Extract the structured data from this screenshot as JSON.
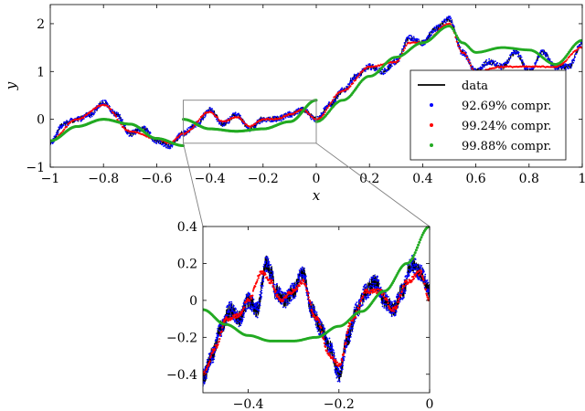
{
  "chart_data": [
    {
      "type": "line",
      "xlabel": "x",
      "ylabel": "y",
      "xlim": [
        -1,
        1
      ],
      "ylim": [
        -1,
        2.4
      ],
      "xticks": [
        -1,
        -0.8,
        -0.6,
        -0.4,
        -0.2,
        0,
        0.2,
        0.4,
        0.6,
        0.8,
        1
      ],
      "xtick_labels": [
        "−1",
        "−0.8",
        "−0.6",
        "−0.4",
        "−0.2",
        "0",
        "0.2",
        "0.4",
        "0.6",
        "0.8",
        "1"
      ],
      "yticks": [
        -1,
        0,
        1,
        2
      ],
      "ytick_labels": [
        "−1",
        "0",
        "1",
        "2"
      ],
      "legend_position": "lower-right",
      "zoom_box": {
        "x": [
          -0.5,
          0
        ],
        "y": [
          -0.5,
          0.4
        ]
      },
      "series": [
        {
          "name": "data",
          "style": "line",
          "color": "#000000",
          "anchors": {
            "x": [
              -1,
              -0.95,
              -0.9,
              -0.85,
              -0.8,
              -0.75,
              -0.7,
              -0.65,
              -0.6,
              -0.55,
              -0.5,
              -0.45,
              -0.4,
              -0.35,
              -0.3,
              -0.25,
              -0.2,
              -0.15,
              -0.1,
              -0.05,
              0,
              0.05,
              0.1,
              0.15,
              0.2,
              0.25,
              0.3,
              0.35,
              0.4,
              0.45,
              0.5,
              0.55,
              0.6,
              0.65,
              0.7,
              0.75,
              0.8,
              0.85,
              0.9,
              0.95,
              1
            ],
            "y": [
              -0.5,
              -0.1,
              0.0,
              0.1,
              0.35,
              0.1,
              -0.3,
              -0.2,
              -0.45,
              -0.55,
              -0.3,
              -0.1,
              0.2,
              -0.1,
              0.1,
              -0.2,
              0.0,
              0.0,
              0.1,
              0.2,
              0.0,
              0.3,
              0.6,
              0.9,
              1.1,
              1.0,
              1.2,
              1.7,
              1.6,
              1.9,
              2.1,
              1.4,
              1.0,
              1.2,
              1.1,
              1.4,
              1.0,
              1.4,
              1.1,
              1.1,
              1.6
            ]
          },
          "noise_amplitude": 0.06
        },
        {
          "name": "92.69% compr.",
          "style": "dots",
          "color": "#0000ff",
          "anchors": {
            "x": [
              -1,
              -0.95,
              -0.9,
              -0.85,
              -0.8,
              -0.75,
              -0.7,
              -0.65,
              -0.6,
              -0.55,
              -0.5,
              -0.45,
              -0.4,
              -0.35,
              -0.3,
              -0.25,
              -0.2,
              -0.15,
              -0.1,
              -0.05,
              0,
              0.05,
              0.1,
              0.15,
              0.2,
              0.25,
              0.3,
              0.35,
              0.4,
              0.45,
              0.5,
              0.55,
              0.6,
              0.65,
              0.7,
              0.75,
              0.8,
              0.85,
              0.9,
              0.95,
              1
            ],
            "y": [
              -0.5,
              -0.1,
              0.0,
              0.1,
              0.35,
              0.1,
              -0.3,
              -0.2,
              -0.45,
              -0.55,
              -0.3,
              -0.1,
              0.2,
              -0.1,
              0.1,
              -0.2,
              0.0,
              0.0,
              0.1,
              0.2,
              0.0,
              0.3,
              0.6,
              0.9,
              1.1,
              1.0,
              1.2,
              1.7,
              1.6,
              1.9,
              2.1,
              1.4,
              1.0,
              1.2,
              1.1,
              1.4,
              1.0,
              1.4,
              1.1,
              1.1,
              1.6
            ]
          }
        },
        {
          "name": "99.24% compr.",
          "style": "dots",
          "color": "#ff0000",
          "anchors": {
            "x": [
              -1,
              -0.9,
              -0.8,
              -0.7,
              -0.6,
              -0.55,
              -0.5,
              -0.4,
              -0.35,
              -0.3,
              -0.25,
              -0.2,
              -0.15,
              -0.1,
              -0.05,
              0,
              0.1,
              0.2,
              0.3,
              0.35,
              0.4,
              0.5,
              0.55,
              0.6,
              0.7,
              0.8,
              0.9,
              1
            ],
            "y": [
              -0.45,
              0.0,
              0.3,
              -0.25,
              -0.4,
              -0.5,
              -0.3,
              0.15,
              -0.05,
              0.05,
              -0.15,
              0.0,
              0.0,
              0.1,
              0.2,
              0.0,
              0.6,
              1.1,
              1.2,
              1.6,
              1.6,
              2.0,
              1.4,
              1.0,
              1.1,
              1.1,
              1.1,
              1.5
            ]
          }
        },
        {
          "name": "99.88% compr.",
          "style": "dots",
          "color": "#22aa22",
          "segments": [
            {
              "x": [
                -1,
                -0.9,
                -0.8,
                -0.7,
                -0.6,
                -0.5
              ],
              "y": [
                -0.45,
                -0.15,
                0.0,
                -0.1,
                -0.4,
                -0.55
              ]
            },
            {
              "x": [
                -0.5,
                -0.4,
                -0.3,
                -0.2,
                -0.1,
                0
              ],
              "y": [
                0.0,
                -0.2,
                -0.25,
                -0.2,
                -0.05,
                0.4
              ]
            },
            {
              "x": [
                0,
                0.1,
                0.2,
                0.3,
                0.4,
                0.5,
                0.55,
                0.6,
                0.7,
                0.8,
                0.9,
                1
              ],
              "y": [
                -0.05,
                0.4,
                0.9,
                1.3,
                1.6,
                1.95,
                1.6,
                1.4,
                1.5,
                1.45,
                1.15,
                1.65
              ]
            }
          ]
        }
      ]
    },
    {
      "type": "line",
      "xlabel": "",
      "ylabel": "",
      "xlim": [
        -0.5,
        0
      ],
      "ylim": [
        -0.5,
        0.4
      ],
      "xticks": [
        -0.4,
        -0.2,
        0
      ],
      "xtick_labels": [
        "−0.4",
        "−0.2",
        "0"
      ],
      "yticks": [
        -0.4,
        -0.2,
        0,
        0.2,
        0.4
      ],
      "ytick_labels": [
        "−0.4",
        "−0.2",
        "0",
        "0.2",
        "0.4"
      ],
      "series": [
        {
          "name": "data",
          "style": "line",
          "color": "#000000",
          "anchors": {
            "x": [
              -0.5,
              -0.48,
              -0.46,
              -0.44,
              -0.42,
              -0.4,
              -0.38,
              -0.36,
              -0.35,
              -0.34,
              -0.32,
              -0.3,
              -0.28,
              -0.26,
              -0.24,
              -0.22,
              -0.2,
              -0.18,
              -0.16,
              -0.14,
              -0.12,
              -0.1,
              -0.08,
              -0.06,
              -0.04,
              -0.02,
              0
            ],
            "y": [
              -0.42,
              -0.3,
              -0.15,
              -0.05,
              -0.1,
              0.0,
              -0.05,
              0.2,
              0.15,
              0.05,
              0.0,
              0.05,
              0.15,
              -0.05,
              -0.15,
              -0.25,
              -0.4,
              -0.2,
              -0.05,
              0.05,
              0.1,
              0.0,
              -0.05,
              0.05,
              0.2,
              0.15,
              0.05
            ]
          },
          "noise_amplitude": 0.045
        },
        {
          "name": "92.69% compr.",
          "style": "dots",
          "color": "#0000ff",
          "anchors": {
            "x": [
              -0.5,
              -0.48,
              -0.46,
              -0.44,
              -0.42,
              -0.4,
              -0.38,
              -0.36,
              -0.35,
              -0.34,
              -0.32,
              -0.3,
              -0.28,
              -0.26,
              -0.24,
              -0.22,
              -0.2,
              -0.18,
              -0.16,
              -0.14,
              -0.12,
              -0.1,
              -0.08,
              -0.06,
              -0.04,
              -0.02,
              0
            ],
            "y": [
              -0.42,
              -0.3,
              -0.15,
              -0.05,
              -0.1,
              0.0,
              -0.05,
              0.2,
              0.15,
              0.05,
              0.0,
              0.05,
              0.15,
              -0.05,
              -0.15,
              -0.25,
              -0.4,
              -0.2,
              -0.05,
              0.05,
              0.1,
              0.0,
              -0.05,
              0.05,
              0.2,
              0.15,
              0.05
            ]
          }
        },
        {
          "name": "99.24% compr.",
          "style": "dots",
          "color": "#ff0000",
          "anchors": {
            "x": [
              -0.5,
              -0.47,
              -0.45,
              -0.42,
              -0.4,
              -0.37,
              -0.35,
              -0.33,
              -0.3,
              -0.28,
              -0.25,
              -0.22,
              -0.2,
              -0.17,
              -0.14,
              -0.11,
              -0.08,
              -0.05,
              -0.02,
              0
            ],
            "y": [
              -0.4,
              -0.25,
              -0.1,
              -0.08,
              0.0,
              0.15,
              0.1,
              0.0,
              0.05,
              0.1,
              -0.1,
              -0.3,
              -0.35,
              -0.1,
              0.05,
              0.05,
              -0.05,
              0.1,
              0.15,
              0.0
            ]
          }
        },
        {
          "name": "99.88% compr.",
          "style": "dots",
          "color": "#22aa22",
          "segments": [
            {
              "x": [
                -0.5,
                -0.45,
                -0.4,
                -0.35,
                -0.3,
                -0.25,
                -0.2,
                -0.15,
                -0.1,
                -0.05,
                0
              ],
              "y": [
                -0.05,
                -0.13,
                -0.19,
                -0.22,
                -0.22,
                -0.2,
                -0.14,
                -0.06,
                0.05,
                0.2,
                0.4
              ]
            }
          ]
        }
      ]
    }
  ]
}
